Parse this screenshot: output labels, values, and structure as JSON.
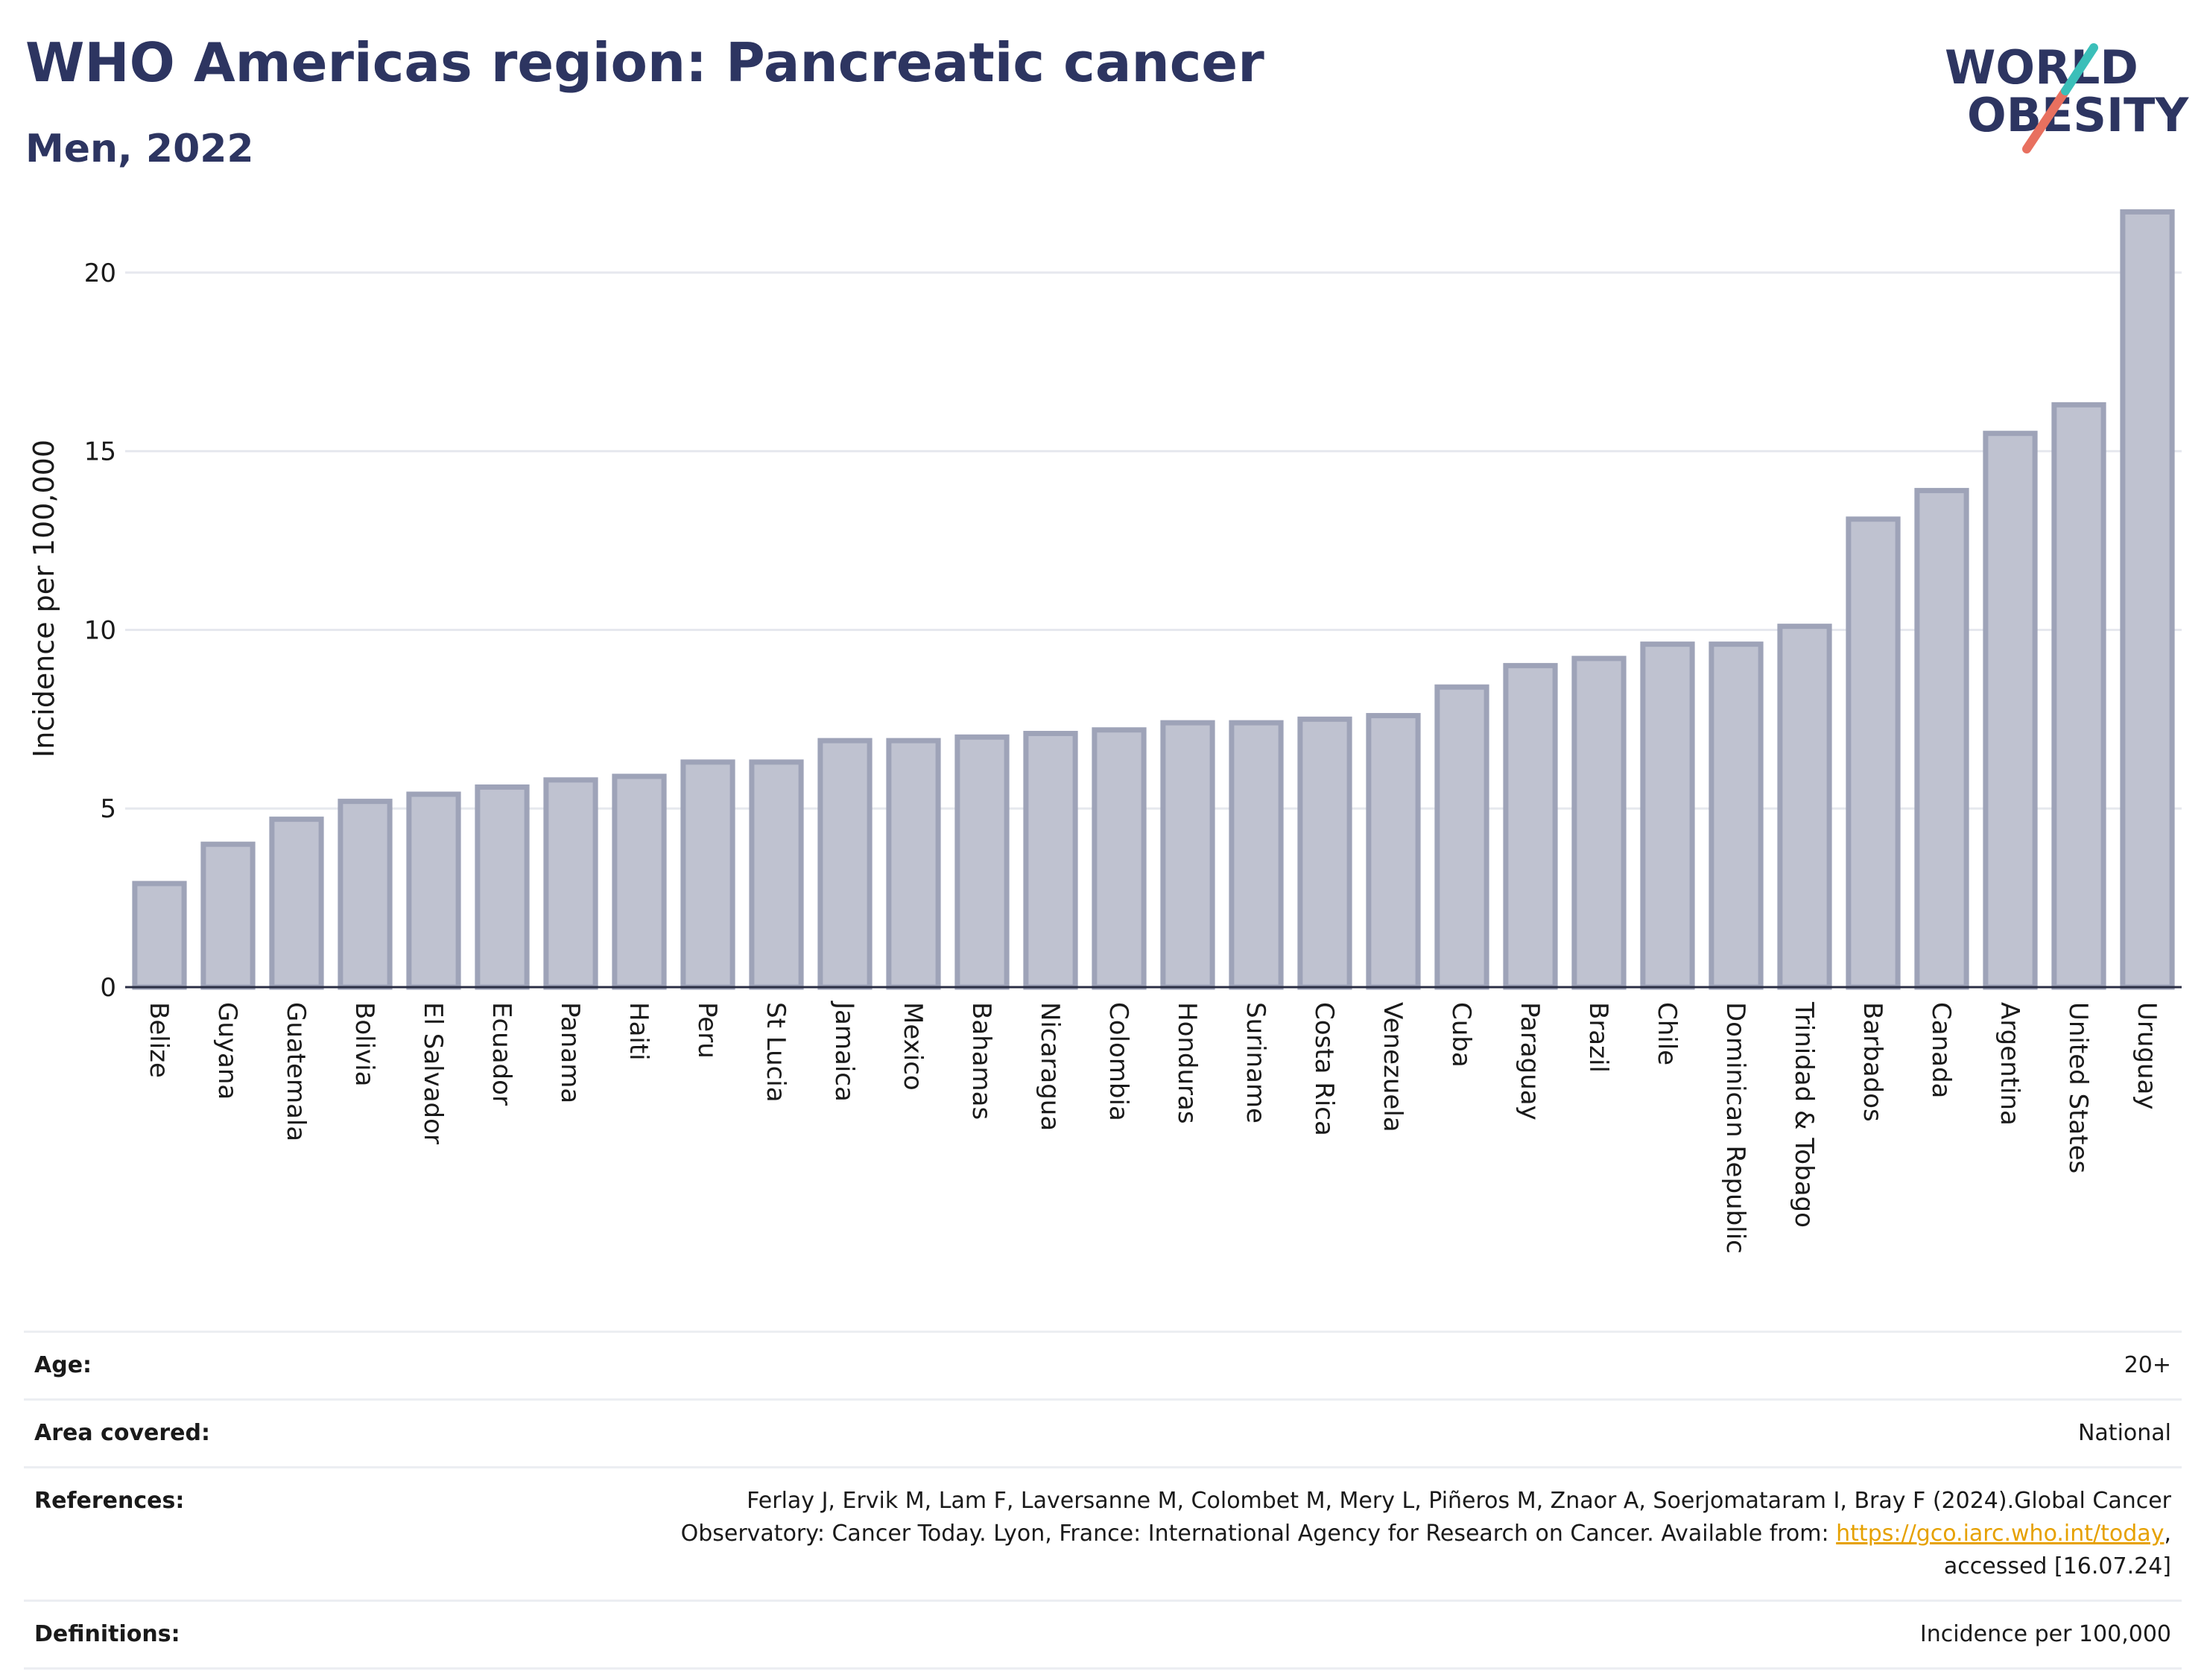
{
  "header": {
    "title": "WHO Americas region: Pancreatic cancer",
    "subtitle": "Men, 2022"
  },
  "logo": {
    "line1": "WORLD",
    "line2": "OBESITY",
    "colors": {
      "text": "#2d3561",
      "slash_teal": "#3bbfb9",
      "slash_red": "#e8705f"
    }
  },
  "chart_data": {
    "type": "bar",
    "title": "WHO Americas region: Pancreatic cancer",
    "subtitle": "Men, 2022",
    "ylabel": "Incidence per 100,000",
    "xlabel": "",
    "ylim": [
      0,
      22
    ],
    "yticks": [
      0,
      5,
      10,
      15,
      20
    ],
    "grid": true,
    "bar_color": "#bfc2d0",
    "bar_border_color": "#9ea3b8",
    "categories": [
      "Belize",
      "Guyana",
      "Guatemala",
      "Bolivia",
      "El Salvador",
      "Ecuador",
      "Panama",
      "Haiti",
      "Peru",
      "St Lucia",
      "Jamaica",
      "Mexico",
      "Bahamas",
      "Nicaragua",
      "Colombia",
      "Honduras",
      "Suriname",
      "Costa Rica",
      "Venezuela",
      "Cuba",
      "Paraguay",
      "Brazil",
      "Chile",
      "Dominican Republic",
      "Trinidad & Tobago",
      "Barbados",
      "Canada",
      "Argentina",
      "United States",
      "Uruguay"
    ],
    "values": [
      2.9,
      4.0,
      4.7,
      5.2,
      5.4,
      5.6,
      5.8,
      5.9,
      6.3,
      6.3,
      6.9,
      6.9,
      7.0,
      7.1,
      7.2,
      7.4,
      7.4,
      7.5,
      7.6,
      8.4,
      9.0,
      9.2,
      9.6,
      9.6,
      10.1,
      13.1,
      13.9,
      15.5,
      16.3,
      21.7
    ]
  },
  "meta": {
    "age_label": "Age:",
    "age_value": "20+",
    "area_label": "Area covered:",
    "area_value": "National",
    "references_label": "References:",
    "references_text1": "Ferlay J, Ervik M, Lam F, Laversanne M, Colombet M, Mery L, Piñeros M, Znaor A, Soerjomataram I, Bray F (2024).Global Cancer",
    "references_text2": "Observatory: Cancer Today. Lyon, France: International Agency for Research on Cancer. Available from: ",
    "references_link": "https://gco.iarc.who.int/today",
    "references_text3": ",",
    "references_text4": "accessed [16.07.24]",
    "definitions_label": "Definitions:",
    "definitions_value": "Incidence per 100,000"
  }
}
